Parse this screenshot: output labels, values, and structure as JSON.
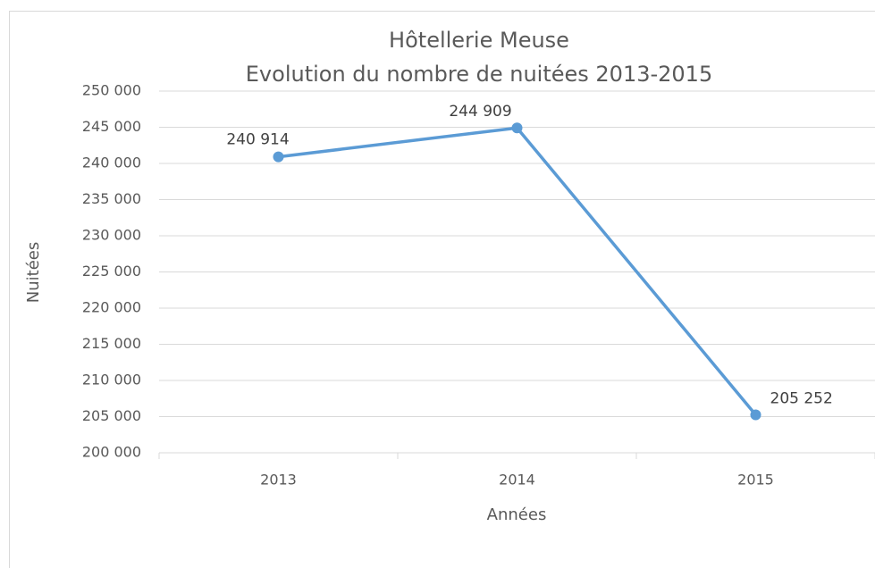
{
  "chart_data": {
    "type": "line",
    "title": "Hôtellerie Meuse",
    "subtitle": "Evolution du nombre de nuitées 2013-2015",
    "x_label": "Années",
    "y_label": "Nuitées",
    "categories": [
      "2013",
      "2014",
      "2015"
    ],
    "values": [
      240914,
      244909,
      205252
    ],
    "value_labels": [
      "240 914",
      "244 909",
      "205 252"
    ],
    "color": "#5b9bd5",
    "ylim": [
      200000,
      250000
    ],
    "yticks": [
      {
        "value": 200000,
        "label": "200 000"
      },
      {
        "value": 205000,
        "label": "205 000"
      },
      {
        "value": 210000,
        "label": "210 000"
      },
      {
        "value": 215000,
        "label": "215 000"
      },
      {
        "value": 220000,
        "label": "220 000"
      },
      {
        "value": 225000,
        "label": "225 000"
      },
      {
        "value": 230000,
        "label": "230 000"
      },
      {
        "value": 235000,
        "label": "235 000"
      },
      {
        "value": 240000,
        "label": "240 000"
      },
      {
        "value": 245000,
        "label": "245 000"
      },
      {
        "value": 250000,
        "label": "250 000"
      }
    ],
    "grid": true
  }
}
